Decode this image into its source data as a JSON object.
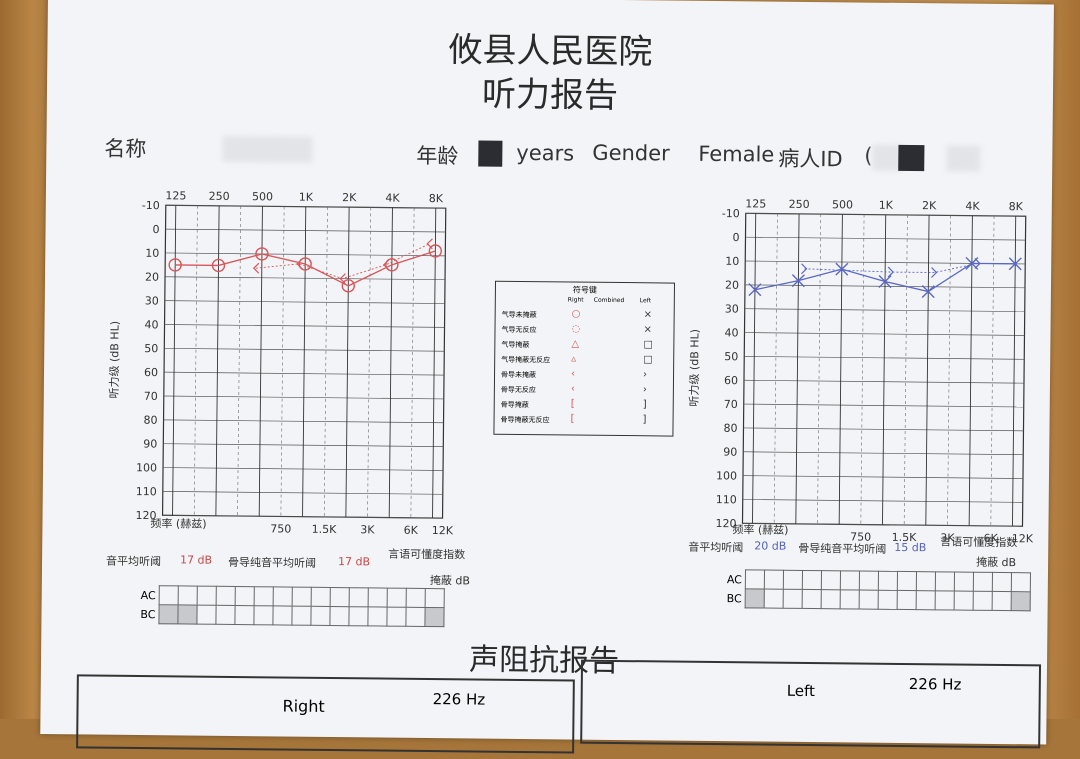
{
  "hospital_title": "攸县人民医院",
  "report_title": "听力报告",
  "patient": {
    "name_label": "名称",
    "age_label": "年龄",
    "age_unit": "years",
    "gender_label": "Gender",
    "gender_value": "Female",
    "id_label": "病人ID",
    "id_value": "("
  },
  "audiogram": {
    "freq_top": [
      "125",
      "250",
      "500",
      "1K",
      "2K",
      "4K",
      "8K"
    ],
    "freq_bottom": [
      "750",
      "1.5K",
      "3K",
      "6K",
      "12K"
    ],
    "y_ticks": [
      "-10",
      "0",
      "10",
      "20",
      "30",
      "40",
      "50",
      "60",
      "70",
      "80",
      "90",
      "100",
      "110",
      "120"
    ],
    "ylabel": "听力级 (dB HL)",
    "xlabel": "频率 (赫兹)"
  },
  "chart_data": [
    {
      "type": "line",
      "name": "Right",
      "x": [
        "125",
        "250",
        "500",
        "1K",
        "2K",
        "4K",
        "8K"
      ],
      "y": [
        15,
        15,
        10,
        14,
        23,
        14,
        8
      ],
      "bone_x": [
        "500",
        "1K",
        "2K",
        "4K",
        "8K"
      ],
      "bone_y": [
        16,
        14,
        20,
        14,
        5
      ],
      "ylim": [
        -10,
        120
      ],
      "color": "#d9565a",
      "symbol": "circle"
    },
    {
      "type": "line",
      "name": "Left",
      "x": [
        "125",
        "250",
        "500",
        "1K",
        "2K",
        "4K",
        "8K"
      ],
      "y": [
        22,
        18,
        13,
        18,
        22,
        10,
        10
      ],
      "bone_x": [
        "250",
        "1K",
        "2K",
        "4K"
      ],
      "bone_y": [
        13,
        14,
        14,
        10
      ],
      "ylim": [
        -10,
        120
      ],
      "color": "#5a68c8",
      "symbol": "x"
    }
  ],
  "right_summary": {
    "pta_label": "音平均听阈",
    "pta_value": "17 dB",
    "bc_label": "骨导纯音平均听阈",
    "bc_value": "17 dB",
    "speech_label": "言语可懂度指数"
  },
  "left_summary": {
    "pta_label": "音平均听阈",
    "pta_value": "20 dB",
    "bc_label": "骨导纯音平均听阈",
    "bc_value": "15 dB",
    "speech_label": "言语可懂度指数"
  },
  "mask": {
    "title": "掩蔽 dB",
    "ac": "AC",
    "bc": "BC"
  },
  "legend": {
    "title": "符号键",
    "col_right": "Right",
    "col_combined": "Combined",
    "col_left": "Left",
    "rows": [
      "气导未掩蔽",
      "气导无反应",
      "气导掩蔽",
      "气导掩蔽无反应",
      "骨导未掩蔽",
      "骨导无反应",
      "骨导掩蔽",
      "骨导掩蔽无反应"
    ]
  },
  "impedance": {
    "title": "声阻抗报告",
    "right_label": "Right",
    "right_freq": "226 Hz",
    "left_label": "Left",
    "left_freq": "226 Hz"
  },
  "colors": {
    "right": "#d9565a",
    "left": "#5a68c8"
  }
}
